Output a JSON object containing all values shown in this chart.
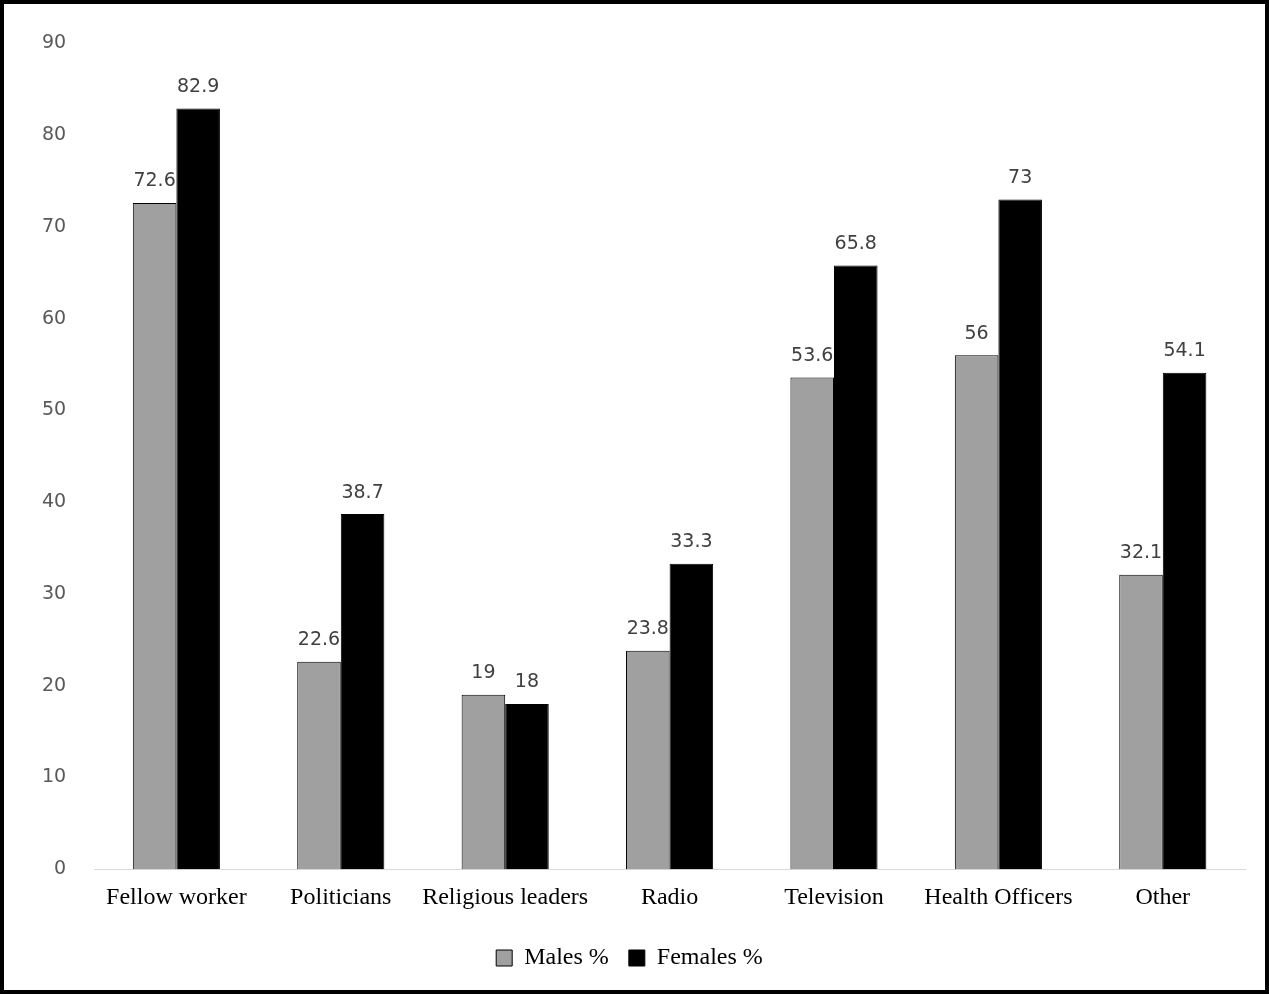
{
  "chart_data": {
    "type": "bar",
    "categories": [
      "Fellow worker",
      "Politicians",
      "Religious leaders",
      "Radio",
      "Television",
      "Health Officers",
      "Other"
    ],
    "series": [
      {
        "name": "Males %",
        "color": "#a0a0a0",
        "values": [
          72.6,
          22.6,
          19,
          23.8,
          53.6,
          56,
          32.1
        ]
      },
      {
        "name": "Females %",
        "color": "#000000",
        "values": [
          82.9,
          38.7,
          18,
          33.3,
          65.8,
          73,
          54.1
        ]
      }
    ],
    "ylim": [
      0,
      90
    ],
    "yticks": [
      0,
      10,
      20,
      30,
      40,
      50,
      60,
      70,
      80,
      90
    ],
    "grid": false,
    "legend": "bottom",
    "data_labels": true
  }
}
